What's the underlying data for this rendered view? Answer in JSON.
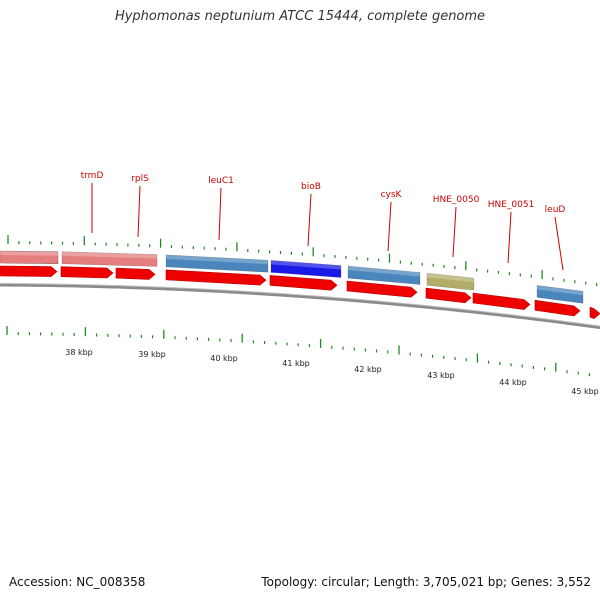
{
  "title": "Hyphomonas neptunium ATCC 15444, complete genome",
  "footer": {
    "accession": "Accession: NC_008358",
    "summary": "Topology: circular; Length: 3,705,021 bp; Genes: 3,552"
  },
  "colors": {
    "cds_arrow": "#ee0000",
    "genome_backbone": "#8a8a8a",
    "tick": "#228822",
    "label": "#cc0000"
  },
  "scale_labels": [
    "38 kbp",
    "39 kbp",
    "40 kbp",
    "41 kbp",
    "42 kbp",
    "43 kbp",
    "44 kbp",
    "45 kbp"
  ],
  "genes": [
    {
      "name": "trmD",
      "color": "#e57f7f"
    },
    {
      "name": "rplS",
      "color": "#e57f7f"
    },
    {
      "name": "leuC1",
      "color": "#4a86bd"
    },
    {
      "name": "bioB",
      "color": "#1a1ae6"
    },
    {
      "name": "cysK",
      "color": "#4a86bd"
    },
    {
      "name": "HNE_0050",
      "color": "#b3ad6a"
    },
    {
      "name": "HNE_0051",
      "color": ""
    },
    {
      "name": "leuD",
      "color": "#4a86bd"
    }
  ],
  "unlabeled_feature_color": "#4c4c8c"
}
